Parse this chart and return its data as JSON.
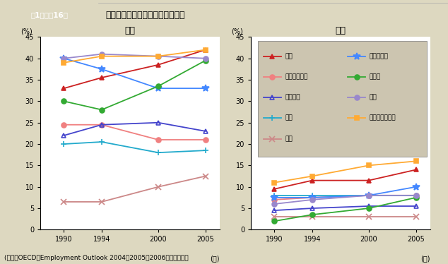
{
  "title_box": "第1－特－16図",
  "title_text": "パートタイム労働者の比率の推移",
  "subtitle_female": "女性",
  "subtitle_male": "男性",
  "ylabel": "(%)",
  "xlabel": "(年)",
  "years": [
    1990,
    1994,
    2000,
    2005
  ],
  "female": {
    "日本": [
      33.0,
      35.5,
      38.5,
      42.0
    ],
    "スウェーデン": [
      24.5,
      24.5,
      21.0,
      21.0
    ],
    "フランス": [
      22.0,
      24.5,
      25.0,
      23.0
    ],
    "米国": [
      20.0,
      20.5,
      18.0,
      18.5
    ],
    "韓国": [
      6.5,
      6.5,
      10.0,
      12.5
    ],
    "ノルウェー": [
      40.0,
      37.5,
      33.0,
      33.0
    ],
    "ドイツ": [
      30.0,
      28.0,
      33.5,
      39.5
    ],
    "英国": [
      40.0,
      41.0,
      40.5,
      40.0
    ],
    "オーストラリア": [
      39.0,
      40.5,
      40.5,
      42.0
    ]
  },
  "male": {
    "日本": [
      9.5,
      11.5,
      11.5,
      14.0
    ],
    "スウェーデン": [
      7.0,
      7.5,
      8.0,
      8.0
    ],
    "フランス": [
      4.5,
      5.0,
      5.5,
      5.5
    ],
    "米国": [
      8.0,
      8.0,
      8.0,
      8.0
    ],
    "韓国": [
      3.0,
      3.0,
      3.0,
      3.0
    ],
    "ノルウェー": [
      7.5,
      7.5,
      8.0,
      10.0
    ],
    "ドイツ": [
      2.0,
      3.5,
      5.0,
      7.5
    ],
    "英国": [
      6.0,
      7.0,
      8.0,
      8.0
    ],
    "オーストラリア": [
      11.0,
      12.5,
      15.0,
      16.0
    ]
  },
  "series_styles": {
    "日本": {
      "color": "#cc2222",
      "marker": "^",
      "mfc": "#cc2222"
    },
    "スウェーデン": {
      "color": "#f08080",
      "marker": "o",
      "mfc": "#f08080"
    },
    "フランス": {
      "color": "#4444cc",
      "marker": "^",
      "mfc": "none"
    },
    "米国": {
      "color": "#22aacc",
      "marker": "+",
      "mfc": "#22aacc"
    },
    "韓国": {
      "color": "#cc8888",
      "marker": "x",
      "mfc": "#cc8888"
    },
    "ノルウェー": {
      "color": "#4488ff",
      "marker": "*",
      "mfc": "#4488ff"
    },
    "ドイツ": {
      "color": "#33aa33",
      "marker": "o",
      "mfc": "#33aa33"
    },
    "英国": {
      "color": "#9988cc",
      "marker": "o",
      "mfc": "#9988cc"
    },
    "オーストラリア": {
      "color": "#ffaa33",
      "marker": "s",
      "mfc": "#ffaa33"
    }
  },
  "legend_left": [
    "日本",
    "スウェーデン",
    "フランス",
    "米国",
    "韓国"
  ],
  "legend_right": [
    "ノルウェー",
    "ドイツ",
    "英国",
    "オーストラリア"
  ],
  "ylim": [
    0,
    45
  ],
  "yticks": [
    0,
    5,
    10,
    15,
    20,
    25,
    30,
    35,
    40,
    45
  ],
  "bg_color": "#ddd8c0",
  "plot_bg": "#ffffff",
  "legend_bg": "#ccc5b0",
  "title_box_color": "#2a8a78",
  "footer": "(備考）OECD『Employment Outlook 2004，2005，2006』より作成。"
}
